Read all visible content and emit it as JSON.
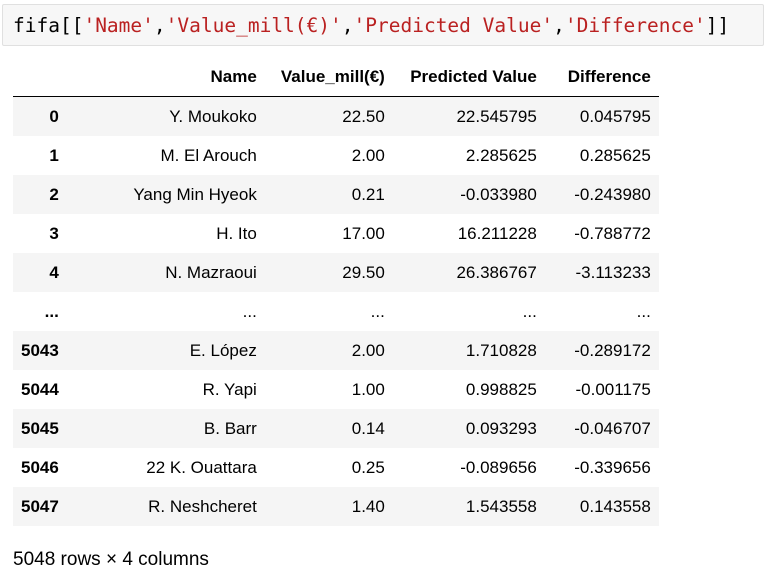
{
  "code": {
    "prefix": "fifa[[",
    "cols": [
      "'Name'",
      "'Value_mill(€)'",
      "'Predicted Value'",
      "'Difference'"
    ],
    "sep": ",",
    "suffix": "]]"
  },
  "table": {
    "columns": [
      "Name",
      "Value_mill(€)",
      "Predicted Value",
      "Difference"
    ],
    "rows": [
      {
        "index": "0",
        "cells": [
          "Y. Moukoko",
          "22.50",
          "22.545795",
          "0.045795"
        ]
      },
      {
        "index": "1",
        "cells": [
          "M. El Arouch",
          "2.00",
          "2.285625",
          "0.285625"
        ]
      },
      {
        "index": "2",
        "cells": [
          "Yang Min Hyeok",
          "0.21",
          "-0.033980",
          "-0.243980"
        ]
      },
      {
        "index": "3",
        "cells": [
          "H. Ito",
          "17.00",
          "16.211228",
          "-0.788772"
        ]
      },
      {
        "index": "4",
        "cells": [
          "N. Mazraoui",
          "29.50",
          "26.386767",
          "-3.113233"
        ]
      },
      {
        "index": "...",
        "cells": [
          "...",
          "...",
          "...",
          "..."
        ]
      },
      {
        "index": "5043",
        "cells": [
          "E. López",
          "2.00",
          "1.710828",
          "-0.289172"
        ]
      },
      {
        "index": "5044",
        "cells": [
          "R. Yapi",
          "1.00",
          "0.998825",
          "-0.001175"
        ]
      },
      {
        "index": "5045",
        "cells": [
          "B. Barr",
          "0.14",
          "0.093293",
          "-0.046707"
        ]
      },
      {
        "index": "5046",
        "cells": [
          "22 K. Ouattara",
          "0.25",
          "-0.089656",
          "-0.339656"
        ]
      },
      {
        "index": "5047",
        "cells": [
          "R. Neshcheret",
          "1.40",
          "1.543558",
          "0.143558"
        ]
      }
    ]
  },
  "footer": "5048 rows × 4 columns"
}
